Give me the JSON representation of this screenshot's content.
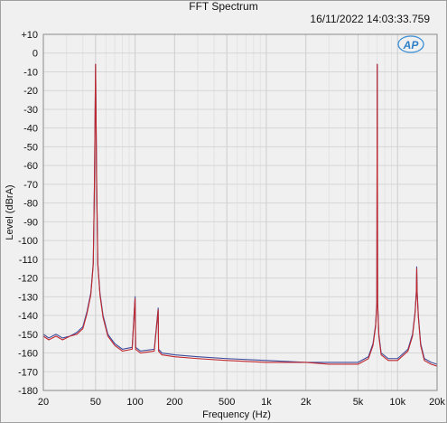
{
  "chart_data": {
    "type": "line",
    "title": "FFT Spectrum",
    "timestamp": "16/11/2022 14:03:33.759",
    "logo_text": "AP",
    "xlabel": "Frequency (Hz)",
    "ylabel": "Level (dBrA)",
    "xscale": "log",
    "xlim": [
      20,
      20000
    ],
    "ylim": [
      -180,
      10
    ],
    "grid": true,
    "x_tick_values": [
      20,
      50,
      100,
      200,
      500,
      1000,
      2000,
      5000,
      10000,
      20000
    ],
    "x_tick_labels": [
      "20",
      "50",
      "100",
      "200",
      "500",
      "1k",
      "2k",
      "5k",
      "10k",
      "20k"
    ],
    "y_tick_values": [
      10,
      0,
      -10,
      -20,
      -30,
      -40,
      -50,
      -60,
      -70,
      -80,
      -90,
      -100,
      -110,
      -120,
      -130,
      -140,
      -150,
      -160,
      -170,
      -180
    ],
    "y_tick_labels": [
      "+10",
      "0",
      "-10",
      "-20",
      "-30",
      "-40",
      "-50",
      "-60",
      "-70",
      "-80",
      "-90",
      "-100",
      "-110",
      "-120",
      "-130",
      "-140",
      "-150",
      "-160",
      "-170",
      "-180"
    ],
    "series": [
      {
        "color": "#3b4a9c",
        "x": [
          20,
          22,
          25,
          28,
          32,
          36,
          40,
          43,
          46,
          48,
          49,
          50,
          51,
          52,
          54,
          57,
          62,
          70,
          80,
          95,
          100,
          101,
          110,
          140,
          150,
          151,
          160,
          200,
          300,
          500,
          1000,
          2000,
          3000,
          5000,
          6000,
          6500,
          6800,
          6950,
          7000,
          7050,
          7200,
          7500,
          8500,
          10000,
          12000,
          13000,
          13600,
          13900,
          14000,
          14100,
          14400,
          15000,
          16000,
          18000,
          20000
        ],
        "y": [
          -150,
          -152,
          -150,
          -152,
          -151,
          -149,
          -146,
          -138,
          -128,
          -112,
          -70,
          -6,
          -70,
          -112,
          -128,
          -140,
          -150,
          -155,
          -158,
          -157,
          -130,
          -157,
          -159,
          -158,
          -136,
          -158,
          -160,
          -161,
          -162,
          -163,
          -164,
          -165,
          -165,
          -165,
          -162,
          -155,
          -145,
          -133,
          -6,
          -133,
          -150,
          -160,
          -163,
          -163,
          -158,
          -150,
          -138,
          -127,
          -114,
          -127,
          -140,
          -155,
          -163,
          -165,
          -166
        ]
      },
      {
        "color": "#c0282e",
        "x": [
          20,
          22,
          25,
          28,
          32,
          36,
          40,
          43,
          46,
          48,
          49,
          50,
          51,
          52,
          54,
          57,
          62,
          70,
          80,
          95,
          100,
          101,
          110,
          140,
          150,
          151,
          160,
          200,
          300,
          500,
          1000,
          2000,
          3000,
          5000,
          6000,
          6500,
          6800,
          6950,
          7000,
          7050,
          7200,
          7500,
          8500,
          10000,
          12000,
          13000,
          13600,
          13900,
          14000,
          14100,
          14400,
          15000,
          16000,
          18000,
          20000
        ],
        "y": [
          -151,
          -153,
          -151,
          -153,
          -151,
          -150,
          -147,
          -139,
          -129,
          -113,
          -72,
          -6,
          -72,
          -113,
          -129,
          -141,
          -151,
          -156,
          -159,
          -158,
          -131,
          -158,
          -160,
          -159,
          -137,
          -159,
          -161,
          -162,
          -163,
          -164,
          -165,
          -165,
          -166,
          -166,
          -163,
          -156,
          -146,
          -134,
          -6,
          -134,
          -151,
          -161,
          -164,
          -164,
          -159,
          -151,
          -139,
          -128,
          -115,
          -128,
          -141,
          -156,
          -164,
          -166,
          -167
        ]
      }
    ]
  }
}
